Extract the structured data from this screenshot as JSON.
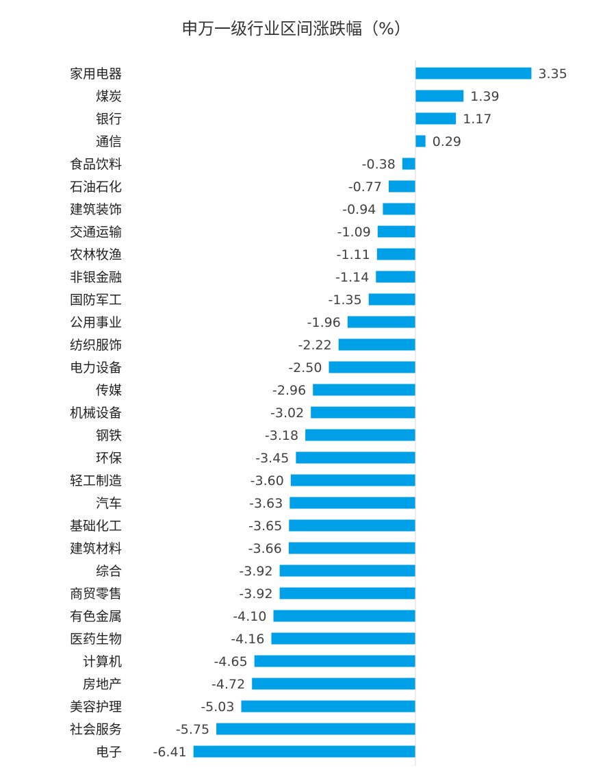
{
  "chart_data": {
    "type": "bar",
    "orientation": "horizontal",
    "title": "申万一级行业区间涨跌幅（%）",
    "categories": [
      "家用电器",
      "煤炭",
      "银行",
      "通信",
      "食品饮料",
      "石油石化",
      "建筑装饰",
      "交通运输",
      "农林牧渔",
      "非银金融",
      "国防军工",
      "公用事业",
      "纺织服饰",
      "电力设备",
      "传媒",
      "机械设备",
      "钢铁",
      "环保",
      "轻工制造",
      "汽车",
      "基础化工",
      "建筑材料",
      "综合",
      "商贸零售",
      "有色金属",
      "医药生物",
      "计算机",
      "房地产",
      "美容护理",
      "社会服务",
      "电子"
    ],
    "values": [
      3.35,
      1.39,
      1.17,
      0.29,
      -0.38,
      -0.77,
      -0.94,
      -1.09,
      -1.11,
      -1.14,
      -1.35,
      -1.96,
      -2.22,
      -2.5,
      -2.96,
      -3.02,
      -3.18,
      -3.45,
      -3.6,
      -3.63,
      -3.65,
      -3.66,
      -3.92,
      -3.92,
      -4.1,
      -4.16,
      -4.65,
      -4.72,
      -5.03,
      -5.75,
      -6.41
    ],
    "value_labels": [
      "3.35",
      "1.39",
      "1.17",
      "0.29",
      "-0.38",
      "-0.77",
      "-0.94",
      "-1.09",
      "-1.11",
      "-1.14",
      "-1.35",
      "-1.96",
      "-2.22",
      "-2.50",
      "-2.96",
      "-3.02",
      "-3.18",
      "-3.45",
      "-3.60",
      "-3.63",
      "-3.65",
      "-3.66",
      "-3.92",
      "-3.92",
      "-4.10",
      "-4.16",
      "-4.65",
      "-4.72",
      "-5.03",
      "-5.75",
      "-6.41"
    ],
    "xlabel": "",
    "ylabel": "",
    "bar_color": "#00A0E9",
    "axis_color": "#D9D9D9",
    "grid": false,
    "legend": "none"
  }
}
